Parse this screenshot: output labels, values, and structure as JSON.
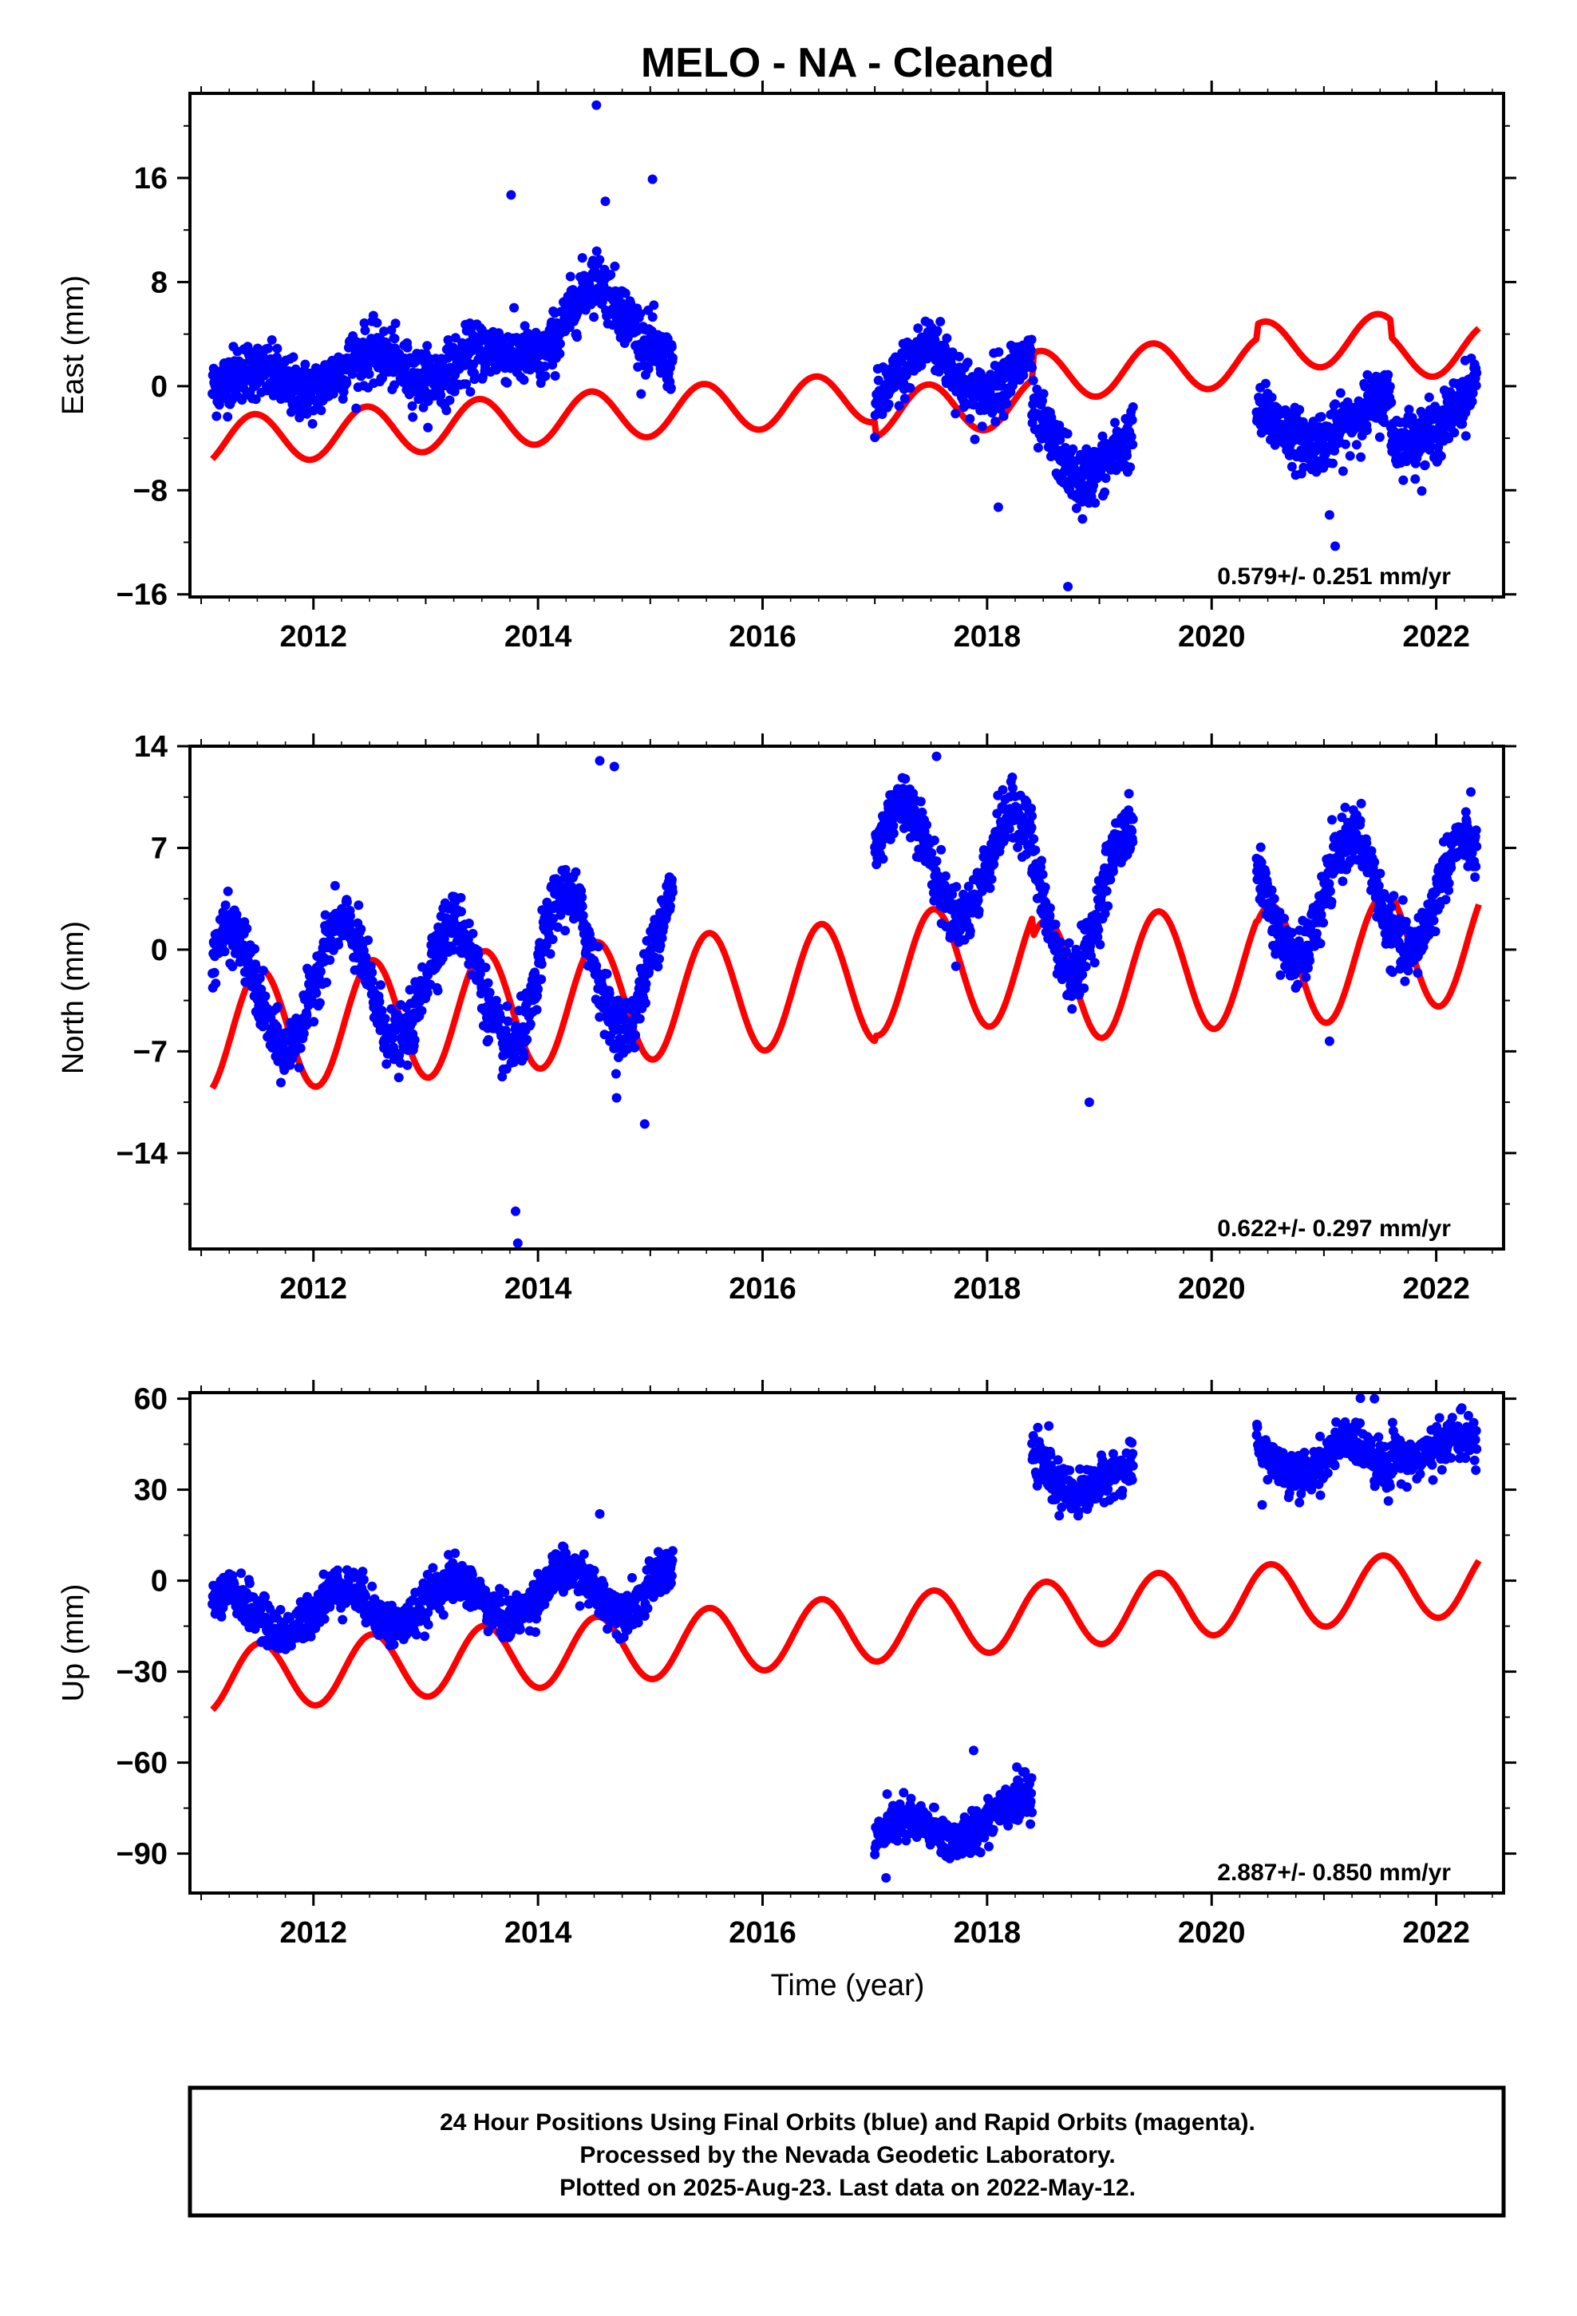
{
  "title": "MELO  - NA - Cleaned",
  "xlabel": "Time (year)",
  "caption": {
    "line1": "24 Hour Positions Using Final Orbits (blue) and Rapid Orbits (magenta).",
    "line2": "Processed by the Nevada Geodetic Laboratory.",
    "line3": "Plotted on 2025-Aug-23. Last data on 2022-May-12."
  },
  "colors": {
    "final_orbits": "#0000ff",
    "model_fit": "#ff0000",
    "frame": "#000000"
  },
  "chart_data": [
    {
      "type": "scatter",
      "component": "east",
      "ylabel": "East (mm)",
      "rate_label": "0.579+/- 0.251 mm/yr",
      "xlim": [
        2010.9,
        2022.6
      ],
      "ylim": [
        -16.2,
        22.5
      ],
      "yticks": [
        -16,
        -8,
        0,
        8,
        16
      ],
      "yticklabels": [
        "−16",
        "−8",
        "0",
        "8",
        "16"
      ],
      "xticks": [
        2012,
        2014,
        2016,
        2018,
        2020,
        2022
      ],
      "xticklabels": [
        "2012",
        "2014",
        "2016",
        "2018",
        "2020",
        "2022"
      ],
      "grid": false,
      "series": [
        {
          "kind": "observations",
          "noise": 1.1,
          "segments": [
            {
              "start": 2011.1,
              "end": 2013.1,
              "trend": [
                [
                  2011.1,
                  0.3
                ],
                [
                  2012.0,
                  0.5
                ],
                [
                  2012.7,
                  2.0
                ],
                [
                  2013.1,
                  1.2
                ]
              ],
              "amp": 0.9,
              "phase": 0.2
            },
            {
              "start": 2013.1,
              "end": 2014.0,
              "trend": [
                [
                  2013.1,
                  0.8
                ],
                [
                  2013.6,
                  2.5
                ],
                [
                  2014.0,
                  3.0
                ]
              ],
              "amp": 0.6,
              "phase": 0.2
            },
            {
              "start": 2014.0,
              "end": 2015.2,
              "trend": [
                [
                  2014.0,
                  2.0
                ],
                [
                  2014.5,
                  8.0
                ],
                [
                  2014.75,
                  6.0
                ],
                [
                  2015.2,
                  1.5
                ]
              ],
              "amp": 0.5,
              "phase": 0.2
            },
            {
              "start": 2017.0,
              "end": 2018.4,
              "trend": [
                [
                  2017.0,
                  -1.0
                ],
                [
                  2017.5,
                  3.0
                ],
                [
                  2017.9,
                  -0.5
                ],
                [
                  2018.4,
                  2.0
                ]
              ],
              "amp": 0.5,
              "phase": 0.2
            },
            {
              "start": 2018.4,
              "end": 2019.3,
              "trend": [
                [
                  2018.4,
                  -2.5
                ],
                [
                  2018.8,
                  -7.0
                ],
                [
                  2019.3,
                  -4.0
                ]
              ],
              "amp": 0.5,
              "phase": 0.2
            },
            {
              "start": 2020.4,
              "end": 2021.6,
              "trend": [
                [
                  2020.4,
                  -2.5
                ],
                [
                  2020.8,
                  -4.0
                ],
                [
                  2021.1,
                  -3.5
                ],
                [
                  2021.6,
                  -1.0
                ]
              ],
              "amp": 0.5,
              "phase": 0.2
            },
            {
              "start": 2021.6,
              "end": 2022.36,
              "trend": [
                [
                  2021.6,
                  -4.5
                ],
                [
                  2022.0,
                  -3.0
                ],
                [
                  2022.36,
                  0.0
                ]
              ],
              "amp": 0.5,
              "phase": 0.2
            }
          ],
          "outliers": [
            [
              2014.52,
              21.6
            ],
            [
              2015.02,
              15.9
            ],
            [
              2013.76,
              14.7
            ],
            [
              2014.6,
              14.2
            ],
            [
              2018.72,
              -15.4
            ],
            [
              2021.1,
              -12.3
            ],
            [
              2021.05,
              -9.9
            ],
            [
              2018.1,
              -9.3
            ],
            [
              2018.85,
              -10.2
            ]
          ]
        },
        {
          "kind": "model",
          "x_range": [
            2011.1,
            2022.38
          ],
          "rate": 0.579,
          "offset": -1.0,
          "amp": 1.9,
          "phase": -0.05,
          "steps": [
            [
              2017.0,
              -1.2
            ],
            [
              2018.4,
              2.0
            ],
            [
              2020.4,
              1.1
            ],
            [
              2021.6,
              -1.3
            ]
          ]
        }
      ]
    },
    {
      "type": "scatter",
      "component": "north",
      "ylabel": "North (mm)",
      "rate_label": "0.622+/- 0.297 mm/yr",
      "xlim": [
        2010.9,
        2022.6
      ],
      "ylim": [
        -20.6,
        14.0
      ],
      "yticks": [
        -14,
        -7,
        0,
        7,
        14
      ],
      "yticklabels": [
        "−14",
        "−7",
        "0",
        "7",
        "14"
      ],
      "xticks": [
        2012,
        2014,
        2016,
        2018,
        2020,
        2022
      ],
      "xticklabels": [
        "2012",
        "2014",
        "2016",
        "2018",
        "2020",
        "2022"
      ],
      "grid": false,
      "series": [
        {
          "kind": "observations",
          "noise": 1.0,
          "segments": [
            {
              "start": 2011.1,
              "end": 2013.1,
              "trend": [
                [
                  2011.1,
                  -3.0
                ],
                [
                  2013.1,
                  -2.0
                ]
              ],
              "amp": 4.2,
              "phase": 0.0
            },
            {
              "start": 2013.1,
              "end": 2014.0,
              "trend": [
                [
                  2013.1,
                  -2.5
                ],
                [
                  2014.0,
                  -2.5
                ]
              ],
              "amp": 4.3,
              "phase": 0.0
            },
            {
              "start": 2014.0,
              "end": 2015.2,
              "trend": [
                [
                  2014.0,
                  -1.0
                ],
                [
                  2015.2,
                  -0.5
                ]
              ],
              "amp": 4.8,
              "phase": 0.0
            },
            {
              "start": 2017.0,
              "end": 2018.4,
              "trend": [
                [
                  2017.0,
                  6.5
                ],
                [
                  2018.4,
                  5.5
                ]
              ],
              "amp": 3.8,
              "phase": 0.0
            },
            {
              "start": 2018.4,
              "end": 2019.3,
              "trend": [
                [
                  2018.4,
                  3.5
                ],
                [
                  2019.3,
                  3.0
                ]
              ],
              "amp": 5.0,
              "phase": 0.0
            },
            {
              "start": 2020.4,
              "end": 2021.6,
              "trend": [
                [
                  2020.4,
                  3.5
                ],
                [
                  2021.6,
                  3.5
                ]
              ],
              "amp": 4.3,
              "phase": 0.0
            },
            {
              "start": 2021.6,
              "end": 2022.36,
              "trend": [
                [
                  2021.6,
                  4.0
                ],
                [
                  2022.36,
                  3.5
                ]
              ],
              "amp": 4.0,
              "phase": 0.0
            }
          ],
          "outliers": [
            [
              2013.82,
              -20.2
            ],
            [
              2013.8,
              -18.0
            ],
            [
              2014.55,
              13.0
            ],
            [
              2014.68,
              12.6
            ],
            [
              2014.7,
              -10.2
            ],
            [
              2014.95,
              -12.0
            ],
            [
              2018.91,
              -10.5
            ],
            [
              2021.05,
              -6.3
            ],
            [
              2017.55,
              13.3
            ]
          ]
        },
        {
          "kind": "model",
          "x_range": [
            2011.1,
            2022.38
          ],
          "rate": 0.622,
          "offset": -2.3,
          "amp": 4.2,
          "phase": 0.0,
          "steps": [
            [
              2017.0,
              0.4
            ],
            [
              2018.4,
              -1.4
            ],
            [
              2020.4,
              -0.2
            ],
            [
              2021.6,
              0.5
            ]
          ]
        }
      ]
    },
    {
      "type": "scatter",
      "component": "up",
      "ylabel": "Up (mm)",
      "rate_label": "2.887+/- 0.850 mm/yr",
      "xlim": [
        2010.9,
        2022.6
      ],
      "ylim": [
        -103,
        62
      ],
      "yticks": [
        -90,
        -60,
        -30,
        0,
        30,
        60
      ],
      "yticklabels": [
        "−90",
        "−60",
        "−30",
        "0",
        "30",
        "60"
      ],
      "xticks": [
        2012,
        2014,
        2016,
        2018,
        2020,
        2022
      ],
      "xticklabels": [
        "2012",
        "2014",
        "2016",
        "2018",
        "2020",
        "2022"
      ],
      "grid": false,
      "series": [
        {
          "kind": "observations",
          "noise": 3.5,
          "segments": [
            {
              "start": 2011.1,
              "end": 2013.1,
              "trend": [
                [
                  2011.1,
                  -12.0
                ],
                [
                  2013.1,
                  -7.0
                ]
              ],
              "amp": 7.0,
              "phase": 0.0
            },
            {
              "start": 2013.1,
              "end": 2014.0,
              "trend": [
                [
                  2013.1,
                  -7.0
                ],
                [
                  2014.0,
                  -5.0
                ]
              ],
              "amp": 7.0,
              "phase": 0.0
            },
            {
              "start": 2014.0,
              "end": 2015.2,
              "trend": [
                [
                  2014.0,
                  -4.0
                ],
                [
                  2015.2,
                  -2.0
                ]
              ],
              "amp": 7.0,
              "phase": 0.0
            },
            {
              "start": 2017.0,
              "end": 2018.4,
              "trend": [
                [
                  2017.0,
                  -86.0
                ],
                [
                  2017.5,
                  -82.0
                ],
                [
                  2018.4,
                  -76.0
                ]
              ],
              "amp": 5.0,
              "phase": 0.0
            },
            {
              "start": 2018.4,
              "end": 2019.3,
              "trend": [
                [
                  2018.4,
                  38.0
                ],
                [
                  2019.3,
                  30.0
                ]
              ],
              "amp": 6.0,
              "phase": 0.0
            },
            {
              "start": 2020.4,
              "end": 2021.6,
              "trend": [
                [
                  2020.4,
                  42.0
                ],
                [
                  2021.6,
                  38.0
                ]
              ],
              "amp": 7.0,
              "phase": 0.0
            },
            {
              "start": 2021.6,
              "end": 2022.36,
              "trend": [
                [
                  2021.6,
                  48.0
                ],
                [
                  2022.36,
                  40.0
                ]
              ],
              "amp": 6.0,
              "phase": 0.0
            }
          ],
          "outliers": [
            [
              2017.88,
              -56.0
            ],
            [
              2021.45,
              60.0
            ],
            [
              2020.45,
              25.0
            ],
            [
              2017.1,
              -98.0
            ],
            [
              2014.55,
              22.0
            ],
            [
              2018.55,
              51.0
            ]
          ]
        },
        {
          "kind": "model",
          "x_range": [
            2011.1,
            2022.38
          ],
          "rate": 2.887,
          "offset": -16.5,
          "amp": 11.0,
          "phase": 0.0,
          "steps": []
        }
      ]
    }
  ]
}
